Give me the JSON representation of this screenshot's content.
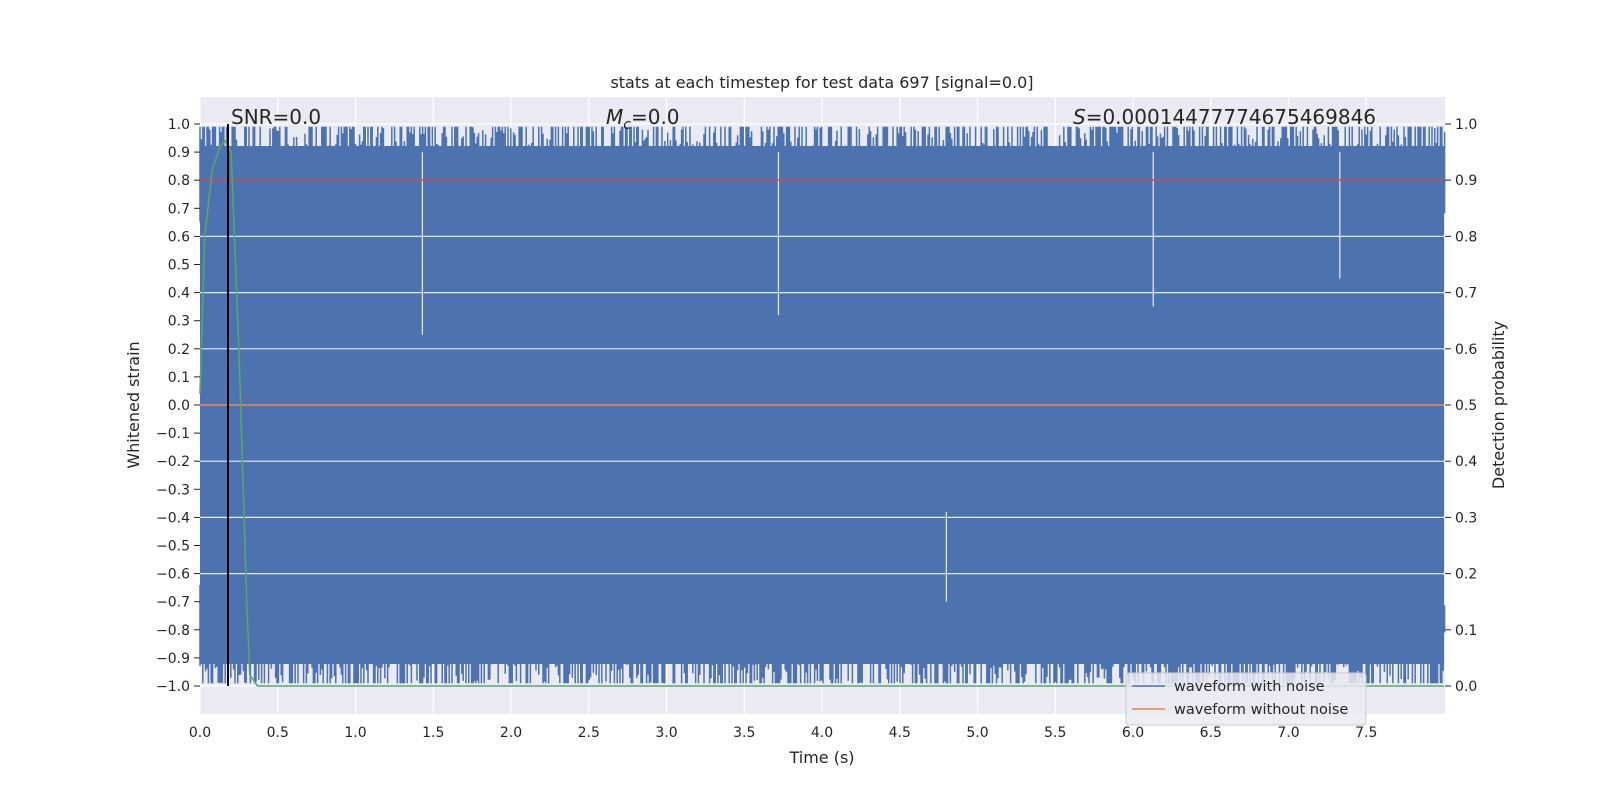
{
  "chart_data": {
    "type": "line",
    "title": "stats at each timestep for test data 697 [signal=0.0]",
    "xlabel": "Time (s)",
    "ylabel": "Whitened strain",
    "y2label": "Detection probability",
    "xlim": [
      0.0,
      8.0
    ],
    "ylim": [
      -1.1,
      1.1
    ],
    "y2lim": [
      -0.05,
      1.05
    ],
    "xticks": [
      "0.0",
      "0.5",
      "1.0",
      "1.5",
      "2.0",
      "2.5",
      "3.0",
      "3.5",
      "4.0",
      "4.5",
      "5.0",
      "5.5",
      "6.0",
      "6.5",
      "7.0",
      "7.5"
    ],
    "xtick_values": [
      0.0,
      0.5,
      1.0,
      1.5,
      2.0,
      2.5,
      3.0,
      3.5,
      4.0,
      4.5,
      5.0,
      5.5,
      6.0,
      6.5,
      7.0,
      7.5
    ],
    "yticks": [
      "1.0",
      "0.9",
      "0.8",
      "0.7",
      "0.6",
      "0.5",
      "0.4",
      "0.3",
      "0.2",
      "0.1",
      "0.0",
      "−0.1",
      "−0.2",
      "−0.3",
      "−0.4",
      "−0.5",
      "−0.6",
      "−0.7",
      "−0.8",
      "−0.9",
      "−1.0"
    ],
    "ytick_values": [
      1.0,
      0.9,
      0.8,
      0.7,
      0.6,
      0.5,
      0.4,
      0.3,
      0.2,
      0.1,
      0.0,
      -0.1,
      -0.2,
      -0.3,
      -0.4,
      -0.5,
      -0.6,
      -0.7,
      -0.8,
      -0.9,
      -1.0
    ],
    "y2ticks": [
      "1.0",
      "0.9",
      "0.8",
      "0.7",
      "0.6",
      "0.5",
      "0.4",
      "0.3",
      "0.2",
      "0.1",
      "0.0"
    ],
    "y2tick_values": [
      1.0,
      0.9,
      0.8,
      0.7,
      0.6,
      0.5,
      0.4,
      0.3,
      0.2,
      0.1,
      0.0
    ],
    "grid": true,
    "legend_position": "lower-right",
    "legend": [
      {
        "label": "waveform with noise",
        "color": "#4c72b0"
      },
      {
        "label": "waveform without noise",
        "color": "#dd8452"
      }
    ],
    "annotations": {
      "snr": "SNR=0.0",
      "mc_symbol": "M",
      "mc_sub": "c",
      "mc_value": "=0.0",
      "s_symbol": "S",
      "s_value": "=0.00014477774675469846"
    },
    "series": [
      {
        "name": "waveform with noise",
        "axis": "left",
        "color": "#4c72b0",
        "description": "whitened noise filling approx -1.0 to 1.0 over 0 to 8 s",
        "amplitude": [
          -1.0,
          1.0
        ]
      },
      {
        "name": "waveform without noise",
        "axis": "left",
        "color": "#dd8452",
        "x": [
          0.0,
          8.0
        ],
        "values": [
          0.0,
          0.0
        ]
      },
      {
        "name": "threshold",
        "axis": "right",
        "color": "#c44e52",
        "x": [
          0.0,
          8.0
        ],
        "values": [
          0.9,
          0.9
        ]
      },
      {
        "name": "detection probability",
        "axis": "right",
        "color": "#55a868",
        "x": [
          0.0,
          0.03,
          0.08,
          0.13,
          0.16,
          0.2,
          0.25,
          0.3,
          0.32,
          0.37,
          0.4,
          8.0
        ],
        "values": [
          0.52,
          0.8,
          0.92,
          0.96,
          0.97,
          0.95,
          0.6,
          0.15,
          0.02,
          0.0,
          0.0,
          0.0
        ]
      },
      {
        "name": "marker",
        "axis": "left",
        "color": "#000000",
        "x": [
          0.18,
          0.18
        ],
        "values": [
          -1.0,
          1.0
        ]
      }
    ]
  }
}
